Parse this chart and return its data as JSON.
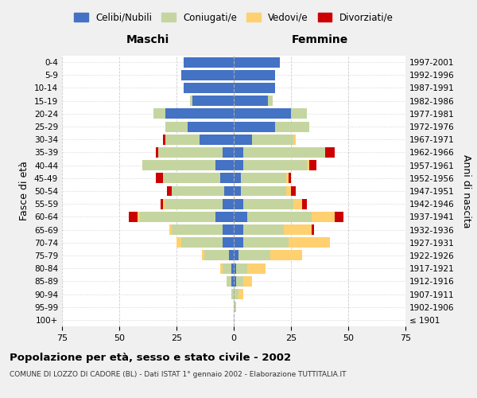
{
  "age_groups": [
    "100+",
    "95-99",
    "90-94",
    "85-89",
    "80-84",
    "75-79",
    "70-74",
    "65-69",
    "60-64",
    "55-59",
    "50-54",
    "45-49",
    "40-44",
    "35-39",
    "30-34",
    "25-29",
    "20-24",
    "15-19",
    "10-14",
    "5-9",
    "0-4"
  ],
  "birth_years": [
    "≤ 1901",
    "1902-1906",
    "1907-1911",
    "1912-1916",
    "1917-1921",
    "1922-1926",
    "1927-1931",
    "1932-1936",
    "1937-1941",
    "1942-1946",
    "1947-1951",
    "1952-1956",
    "1957-1961",
    "1962-1966",
    "1967-1971",
    "1972-1976",
    "1977-1981",
    "1982-1986",
    "1987-1991",
    "1992-1996",
    "1997-2001"
  ],
  "colors": {
    "celibe": "#4472C4",
    "coniugato": "#C5D5A0",
    "vedovo": "#FFD070",
    "divorziato": "#CC0000"
  },
  "maschi": {
    "celibe": [
      0,
      0,
      0,
      1,
      1,
      2,
      5,
      5,
      8,
      5,
      4,
      6,
      8,
      5,
      15,
      20,
      30,
      18,
      22,
      23,
      22
    ],
    "coniugato": [
      0,
      0,
      1,
      2,
      4,
      11,
      18,
      22,
      33,
      25,
      23,
      25,
      32,
      28,
      15,
      10,
      5,
      1,
      0,
      0,
      0
    ],
    "vedovo": [
      0,
      0,
      0,
      0,
      1,
      1,
      2,
      1,
      1,
      1,
      0,
      0,
      0,
      0,
      0,
      0,
      0,
      0,
      0,
      0,
      0
    ],
    "divorziato": [
      0,
      0,
      0,
      0,
      0,
      0,
      0,
      0,
      4,
      1,
      2,
      3,
      0,
      1,
      1,
      0,
      0,
      0,
      0,
      0,
      0
    ]
  },
  "femmine": {
    "nubile": [
      0,
      0,
      0,
      1,
      1,
      2,
      4,
      4,
      6,
      4,
      3,
      3,
      4,
      4,
      8,
      18,
      25,
      15,
      18,
      18,
      20
    ],
    "coniugata": [
      0,
      1,
      2,
      3,
      5,
      14,
      20,
      18,
      28,
      22,
      20,
      20,
      28,
      36,
      18,
      15,
      7,
      2,
      0,
      0,
      0
    ],
    "vedova": [
      0,
      0,
      2,
      4,
      8,
      14,
      18,
      12,
      10,
      4,
      2,
      1,
      1,
      0,
      1,
      0,
      0,
      0,
      0,
      0,
      0
    ],
    "divorziata": [
      0,
      0,
      0,
      0,
      0,
      0,
      0,
      1,
      4,
      2,
      2,
      1,
      3,
      4,
      0,
      0,
      0,
      0,
      0,
      0,
      0
    ]
  },
  "xlim": 75,
  "title": "Popolazione per età, sesso e stato civile - 2002",
  "subtitle": "COMUNE DI LOZZO DI CADORE (BL) - Dati ISTAT 1° gennaio 2002 - Elaborazione TUTTITALIA.IT",
  "ylabel_left": "Fasce di età",
  "ylabel_right": "Anni di nascita",
  "xlabel_maschi": "Maschi",
  "xlabel_femmine": "Femmine",
  "legend_labels": [
    "Celibi/Nubili",
    "Coniugati/e",
    "Vedovi/e",
    "Divorziati/e"
  ],
  "bg_color": "#F0F0F0",
  "plot_bg": "#FFFFFF"
}
